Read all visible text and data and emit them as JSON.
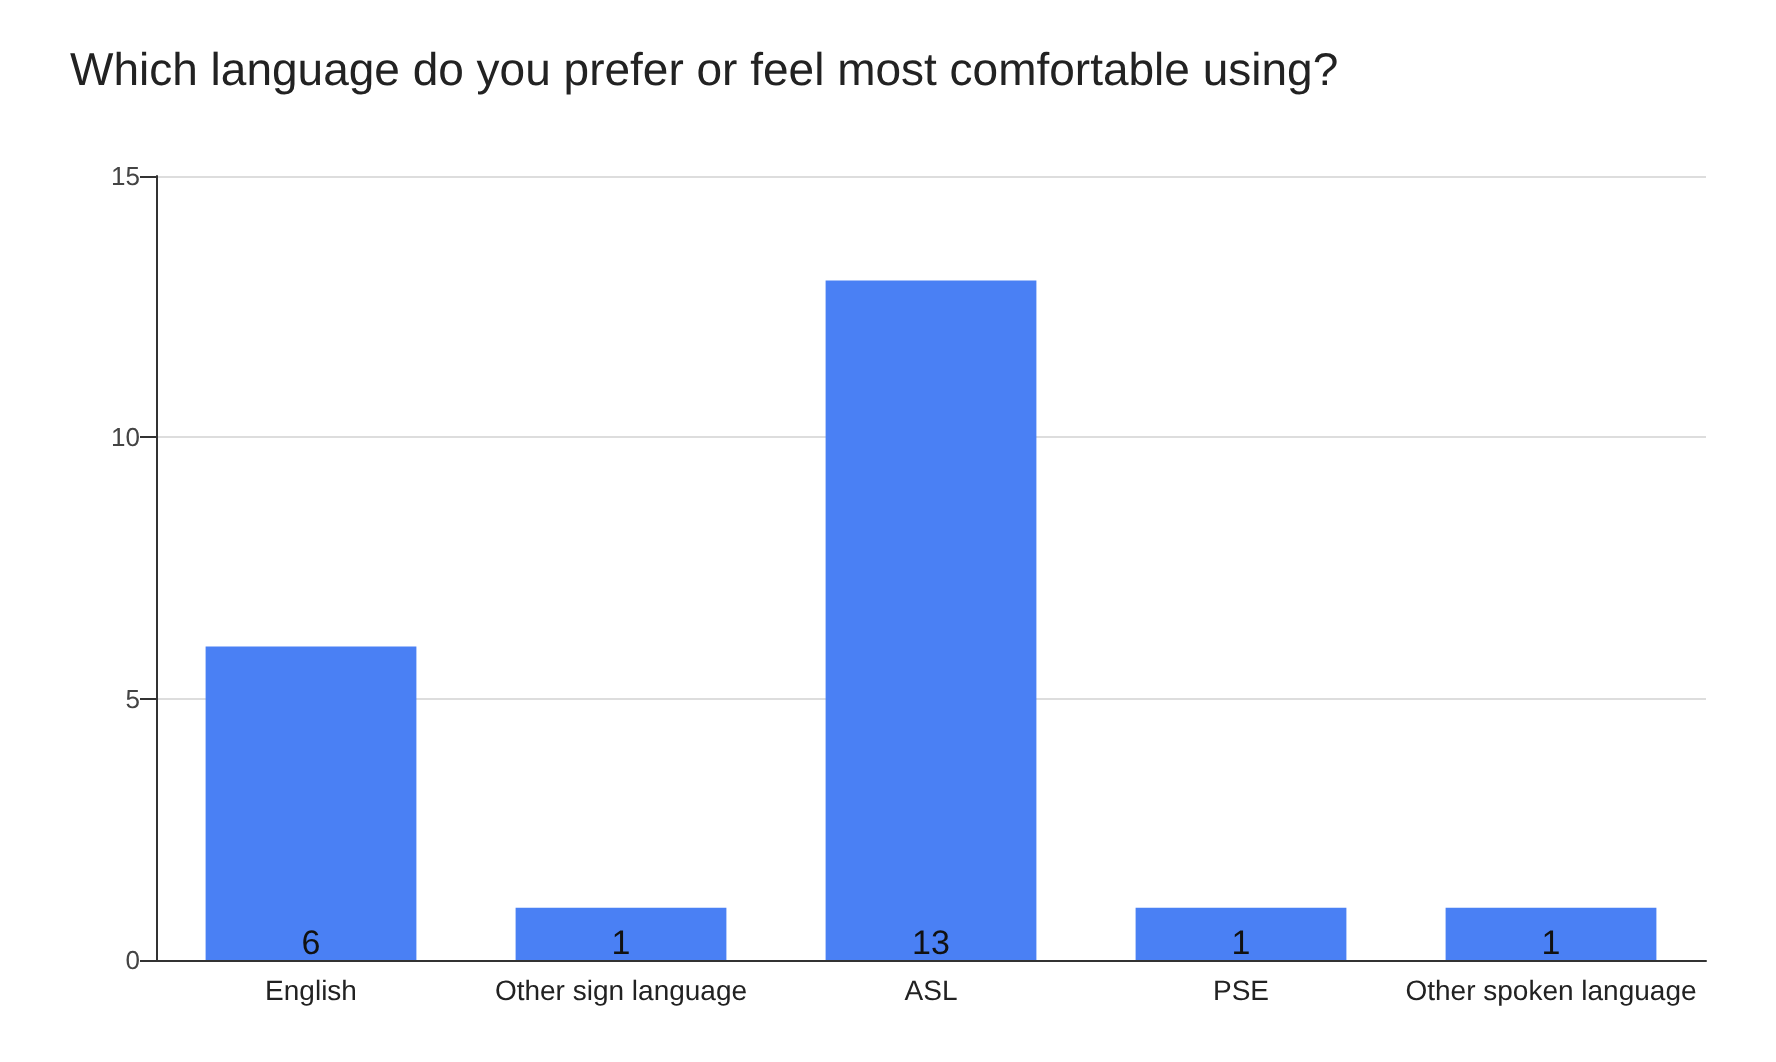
{
  "chart_data": {
    "type": "bar",
    "title": "Which language do you prefer or feel most comfortable using?",
    "categories": [
      "English",
      "Other sign language",
      "ASL",
      "PSE",
      "Other spoken language"
    ],
    "values": [
      6,
      1,
      13,
      1,
      1
    ],
    "color": "#4a80f4",
    "ylim": [
      0,
      15
    ],
    "yticks": [
      0,
      5,
      10,
      15
    ],
    "grid": "y",
    "data_labels": true
  }
}
